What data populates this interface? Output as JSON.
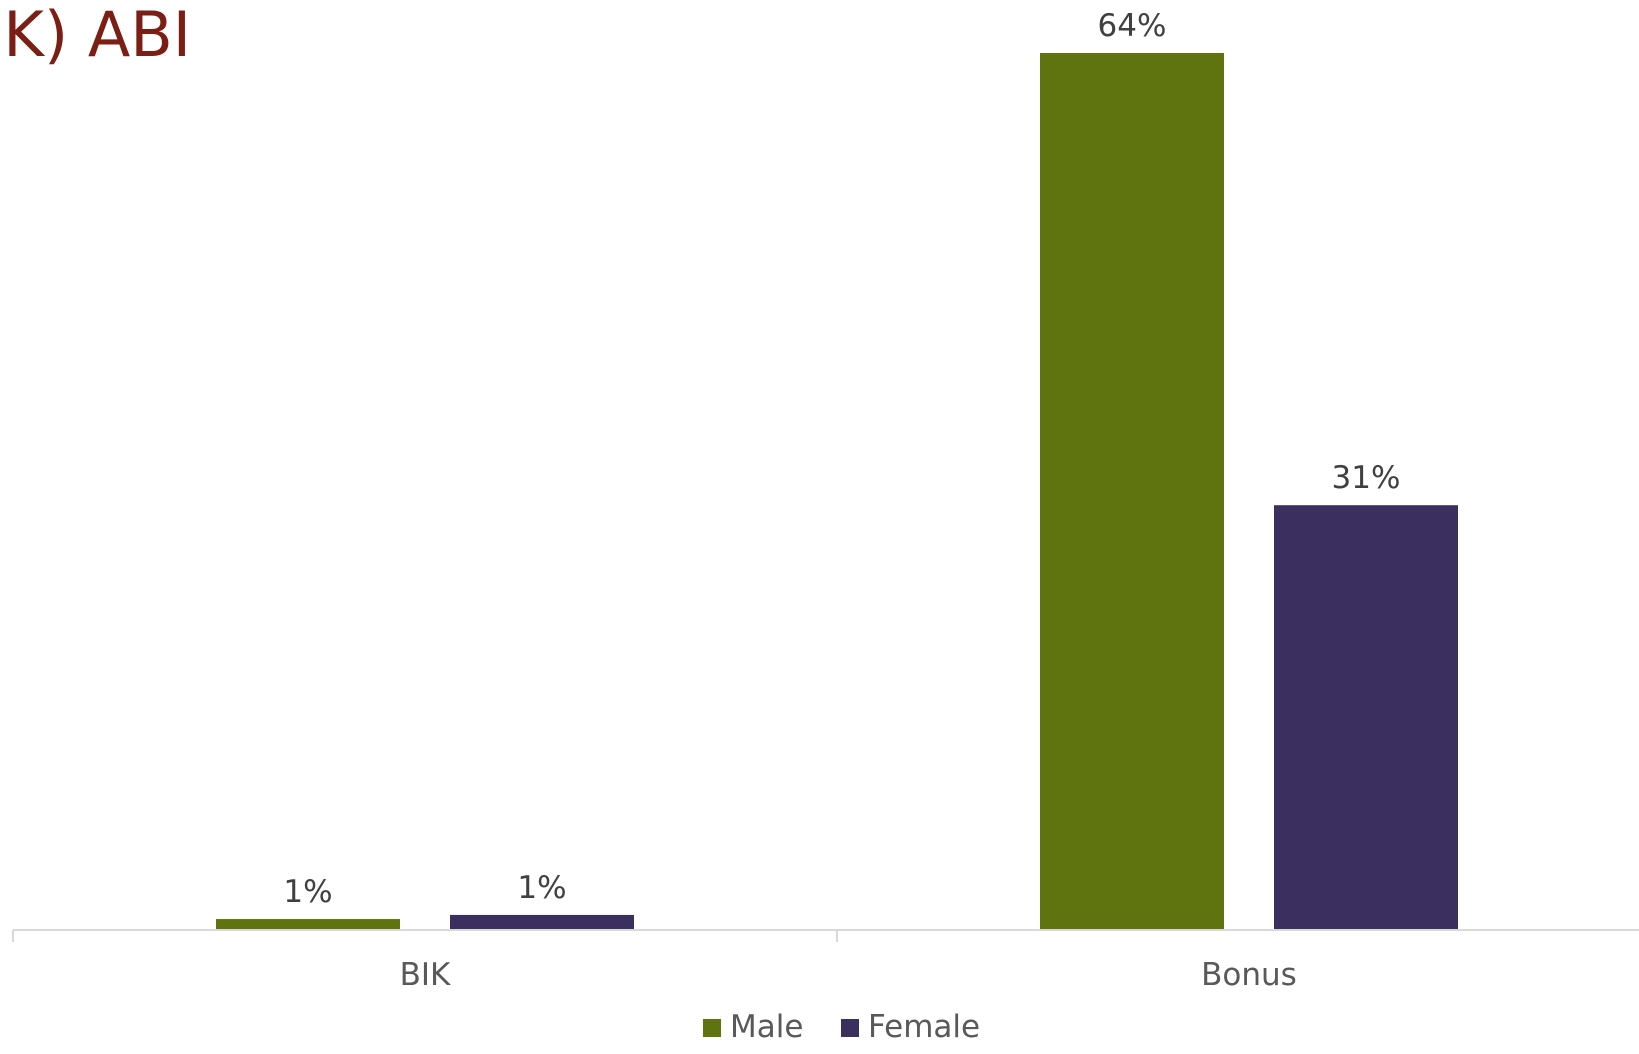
{
  "chart_data": {
    "type": "bar",
    "title": "IK) ABI",
    "categories": [
      "BIK",
      "Bonus"
    ],
    "series": [
      {
        "name": "Male",
        "color": "#5f730e",
        "values": [
          0.8,
          64
        ],
        "labels": [
          "1%",
          "64%"
        ]
      },
      {
        "name": "Female",
        "color": "#3b2f60",
        "values": [
          1.1,
          31
        ],
        "labels": [
          "1%",
          "31%"
        ]
      }
    ],
    "ylim": [
      0,
      64
    ],
    "grid": false,
    "legend_position": "bottom"
  }
}
